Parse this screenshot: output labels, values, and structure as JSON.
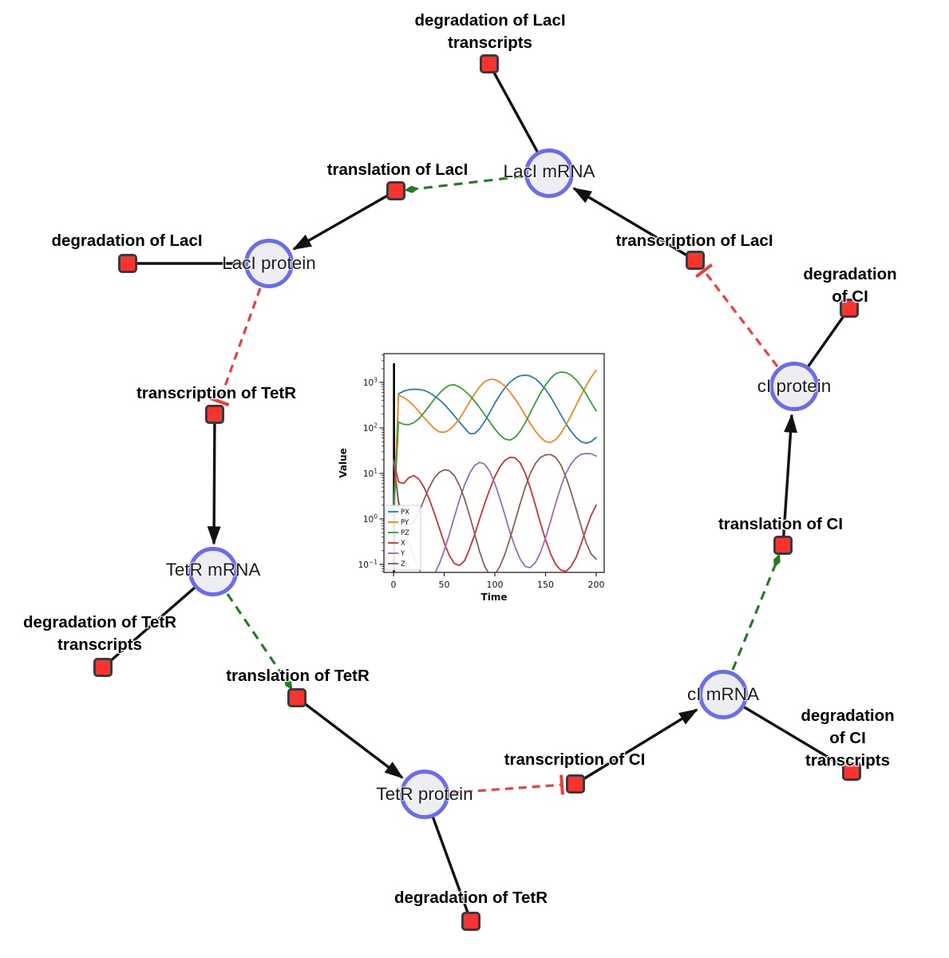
{
  "network": {
    "species": [
      {
        "id": "laci-mrna",
        "label": "LacI mRNA"
      },
      {
        "id": "laci-protein",
        "label": "LacI protein"
      },
      {
        "id": "ci-protein",
        "label": "cI protein"
      },
      {
        "id": "tetr-mrna",
        "label": "TetR mRNA"
      },
      {
        "id": "ci-mrna",
        "label": "cI mRNA"
      },
      {
        "id": "tetr-protein",
        "label": "TetR protein"
      }
    ],
    "reactions": [
      {
        "id": "degradation-of-laci-transcripts",
        "label": "degradation of LacI\ntranscripts"
      },
      {
        "id": "translation-of-laci",
        "label": "translation of LacI"
      },
      {
        "id": "degradation-of-laci",
        "label": "degradation of LacI"
      },
      {
        "id": "transcription-of-laci",
        "label": "transcription of LacI"
      },
      {
        "id": "degradation-of-ci",
        "label": "degradation of CI"
      },
      {
        "id": "transcription-of-tetr",
        "label": "transcription of TetR"
      },
      {
        "id": "degradation-of-tetr-transcripts",
        "label": "degradation of TetR\ntranscripts"
      },
      {
        "id": "translation-of-tetr",
        "label": "translation of TetR"
      },
      {
        "id": "translation-of-ci",
        "label": "translation of CI"
      },
      {
        "id": "transcription-of-ci",
        "label": "transcription of CI"
      },
      {
        "id": "degradation-of-ci-transcripts",
        "label": "degradation of CI\ntranscripts"
      },
      {
        "id": "degradation-of-tetr",
        "label": "degradation of TetR"
      }
    ],
    "edges": [
      {
        "from": "transcription of LacI",
        "to": "LacI mRNA",
        "type": "production"
      },
      {
        "from": "LacI mRNA",
        "to": "degradation of LacI transcripts",
        "type": "degradation"
      },
      {
        "from": "LacI mRNA",
        "to": "translation of LacI",
        "type": "modifier"
      },
      {
        "from": "translation of LacI",
        "to": "LacI protein",
        "type": "production"
      },
      {
        "from": "LacI protein",
        "to": "degradation of LacI",
        "type": "degradation"
      },
      {
        "from": "LacI protein",
        "to": "transcription of TetR",
        "type": "inhibition"
      },
      {
        "from": "transcription of TetR",
        "to": "TetR mRNA",
        "type": "production"
      },
      {
        "from": "TetR mRNA",
        "to": "degradation of TetR transcripts",
        "type": "degradation"
      },
      {
        "from": "TetR mRNA",
        "to": "translation of TetR",
        "type": "modifier"
      },
      {
        "from": "translation of TetR",
        "to": "TetR protein",
        "type": "production"
      },
      {
        "from": "TetR protein",
        "to": "degradation of TetR",
        "type": "degradation"
      },
      {
        "from": "TetR protein",
        "to": "transcription of CI",
        "type": "inhibition"
      },
      {
        "from": "transcription of CI",
        "to": "cI mRNA",
        "type": "production"
      },
      {
        "from": "cI mRNA",
        "to": "degradation of CI transcripts",
        "type": "degradation"
      },
      {
        "from": "cI mRNA",
        "to": "translation of CI",
        "type": "modifier"
      },
      {
        "from": "translation of CI",
        "to": "cI protein",
        "type": "production"
      },
      {
        "from": "cI protein",
        "to": "degradation of CI",
        "type": "degradation"
      },
      {
        "from": "cI protein",
        "to": "transcription of LacI",
        "type": "inhibition"
      }
    ],
    "colors": {
      "species_fill": "#eceef2",
      "species_border": "#6b6bef",
      "reaction_fill": "#fa332e",
      "reaction_border": "#3a3a3a",
      "production_edge": "#111111",
      "modifier_edge": "#1e7d1e",
      "inhibition_edge": "#f23a3a"
    }
  },
  "chart_data": {
    "type": "line",
    "title": "",
    "xlabel": "Time",
    "ylabel": "Value",
    "yscale": "log",
    "xlim": [
      -9,
      208
    ],
    "ylim": [
      0.067,
      4270
    ],
    "xticks": [
      0,
      50,
      100,
      150,
      200
    ],
    "ytick_exponents": [
      -1,
      0,
      1,
      2,
      3
    ],
    "legend_position": "lower left",
    "annotations": [
      {
        "type": "vline",
        "x": 0,
        "color": "#000000"
      }
    ],
    "x": [
      0,
      5,
      10,
      15,
      20,
      25,
      30,
      35,
      40,
      45,
      50,
      55,
      60,
      65,
      70,
      75,
      80,
      85,
      90,
      95,
      100,
      105,
      110,
      115,
      120,
      125,
      130,
      135,
      140,
      145,
      150,
      155,
      160,
      165,
      170,
      175,
      180,
      185,
      190,
      195,
      200
    ],
    "series": [
      {
        "name": "PX",
        "color": "#1f77b4",
        "values": [
          1,
          560,
          640,
          690,
          710,
          700,
          670,
          600,
          510,
          420,
          330,
          250,
          185,
          135,
          100,
          75,
          75,
          95,
          140,
          220,
          350,
          530,
          760,
          1020,
          1250,
          1400,
          1450,
          1380,
          1200,
          950,
          700,
          480,
          310,
          195,
          125,
          85,
          62,
          50,
          46,
          50,
          62
        ]
      },
      {
        "name": "PY",
        "color": "#ff7f0e",
        "values": [
          1,
          520,
          470,
          390,
          305,
          230,
          170,
          128,
          98,
          82,
          80,
          90,
          115,
          160,
          240,
          370,
          560,
          800,
          1050,
          1170,
          1150,
          1020,
          820,
          610,
          430,
          290,
          190,
          125,
          85,
          62,
          50,
          48,
          56,
          75,
          115,
          185,
          310,
          520,
          840,
          1300,
          1850
        ]
      },
      {
        "name": "PZ",
        "color": "#2ca02c",
        "values": [
          1,
          135,
          120,
          118,
          130,
          160,
          215,
          300,
          420,
          570,
          730,
          860,
          890,
          790,
          660,
          520,
          390,
          280,
          195,
          135,
          95,
          70,
          57,
          54,
          62,
          85,
          130,
          215,
          360,
          580,
          880,
          1230,
          1560,
          1690,
          1650,
          1450,
          1150,
          830,
          560,
          360,
          235
        ]
      },
      {
        "name": "X",
        "color": "#d62728",
        "values": [
          20,
          6.5,
          6,
          8,
          9,
          7.5,
          5,
          2.8,
          1.4,
          0.65,
          0.3,
          0.16,
          0.105,
          0.095,
          0.12,
          0.22,
          0.45,
          1.0,
          2.2,
          4.5,
          8.5,
          14,
          19.5,
          22.5,
          22,
          17,
          10,
          4.8,
          2.0,
          0.8,
          0.35,
          0.17,
          0.1,
          0.075,
          0.07,
          0.09,
          0.14,
          0.28,
          0.6,
          1.2,
          2.0
        ]
      },
      {
        "name": "Y",
        "color": "#9467bd",
        "values": [
          20,
          2.5,
          0.8,
          0.33,
          0.15,
          0.08,
          0.05,
          0.048,
          0.06,
          0.1,
          0.2,
          0.45,
          1.1,
          2.6,
          5.5,
          10,
          15,
          17.5,
          16,
          11,
          6,
          2.8,
          1.2,
          0.5,
          0.24,
          0.13,
          0.09,
          0.085,
          0.11,
          0.18,
          0.38,
          0.9,
          2.2,
          5,
          10,
          16,
          22,
          26,
          27.5,
          27,
          24
        ]
      },
      {
        "name": "Z",
        "color": "#8c564b",
        "values": [
          20,
          2.2,
          0.9,
          0.75,
          0.85,
          1.4,
          2.6,
          4.8,
          7.8,
          10.5,
          12,
          11.5,
          9,
          5.5,
          2.8,
          1.2,
          0.48,
          0.19,
          0.09,
          0.058,
          0.06,
          0.09,
          0.17,
          0.38,
          0.9,
          2.2,
          5,
          10,
          16.5,
          22.5,
          25.5,
          26,
          22.5,
          15.5,
          8.5,
          4,
          1.7,
          0.7,
          0.3,
          0.17,
          0.13
        ]
      }
    ]
  }
}
